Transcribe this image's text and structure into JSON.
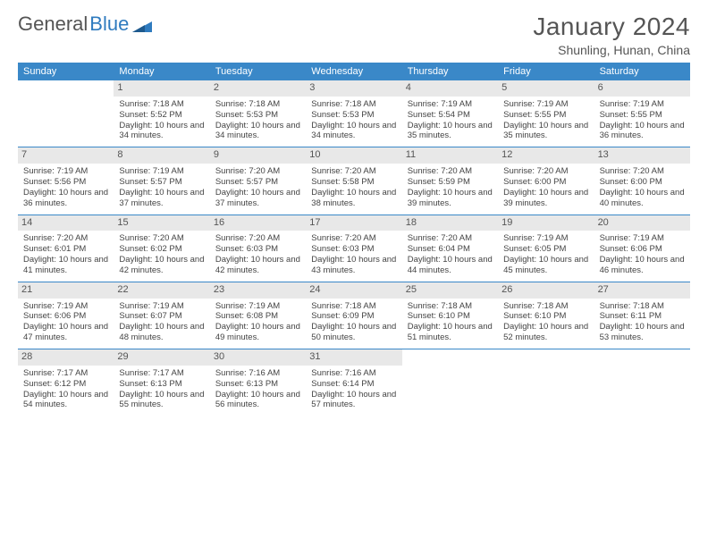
{
  "logo": {
    "text_gray": "General",
    "text_blue": "Blue"
  },
  "title": "January 2024",
  "location": "Shunling, Hunan, China",
  "colors": {
    "header_bg": "#3a88c8",
    "header_text": "#ffffff",
    "daynum_bg": "#e8e8e8",
    "rule": "#3a88c8",
    "text": "#444444",
    "title_text": "#555555",
    "logo_blue": "#2f7bbf"
  },
  "day_names": [
    "Sunday",
    "Monday",
    "Tuesday",
    "Wednesday",
    "Thursday",
    "Friday",
    "Saturday"
  ],
  "weeks": [
    [
      {
        "empty": true
      },
      {
        "day": "1",
        "sunrise": "Sunrise: 7:18 AM",
        "sunset": "Sunset: 5:52 PM",
        "daylight": "Daylight: 10 hours and 34 minutes."
      },
      {
        "day": "2",
        "sunrise": "Sunrise: 7:18 AM",
        "sunset": "Sunset: 5:53 PM",
        "daylight": "Daylight: 10 hours and 34 minutes."
      },
      {
        "day": "3",
        "sunrise": "Sunrise: 7:18 AM",
        "sunset": "Sunset: 5:53 PM",
        "daylight": "Daylight: 10 hours and 34 minutes."
      },
      {
        "day": "4",
        "sunrise": "Sunrise: 7:19 AM",
        "sunset": "Sunset: 5:54 PM",
        "daylight": "Daylight: 10 hours and 35 minutes."
      },
      {
        "day": "5",
        "sunrise": "Sunrise: 7:19 AM",
        "sunset": "Sunset: 5:55 PM",
        "daylight": "Daylight: 10 hours and 35 minutes."
      },
      {
        "day": "6",
        "sunrise": "Sunrise: 7:19 AM",
        "sunset": "Sunset: 5:55 PM",
        "daylight": "Daylight: 10 hours and 36 minutes."
      }
    ],
    [
      {
        "day": "7",
        "sunrise": "Sunrise: 7:19 AM",
        "sunset": "Sunset: 5:56 PM",
        "daylight": "Daylight: 10 hours and 36 minutes."
      },
      {
        "day": "8",
        "sunrise": "Sunrise: 7:19 AM",
        "sunset": "Sunset: 5:57 PM",
        "daylight": "Daylight: 10 hours and 37 minutes."
      },
      {
        "day": "9",
        "sunrise": "Sunrise: 7:20 AM",
        "sunset": "Sunset: 5:57 PM",
        "daylight": "Daylight: 10 hours and 37 minutes."
      },
      {
        "day": "10",
        "sunrise": "Sunrise: 7:20 AM",
        "sunset": "Sunset: 5:58 PM",
        "daylight": "Daylight: 10 hours and 38 minutes."
      },
      {
        "day": "11",
        "sunrise": "Sunrise: 7:20 AM",
        "sunset": "Sunset: 5:59 PM",
        "daylight": "Daylight: 10 hours and 39 minutes."
      },
      {
        "day": "12",
        "sunrise": "Sunrise: 7:20 AM",
        "sunset": "Sunset: 6:00 PM",
        "daylight": "Daylight: 10 hours and 39 minutes."
      },
      {
        "day": "13",
        "sunrise": "Sunrise: 7:20 AM",
        "sunset": "Sunset: 6:00 PM",
        "daylight": "Daylight: 10 hours and 40 minutes."
      }
    ],
    [
      {
        "day": "14",
        "sunrise": "Sunrise: 7:20 AM",
        "sunset": "Sunset: 6:01 PM",
        "daylight": "Daylight: 10 hours and 41 minutes."
      },
      {
        "day": "15",
        "sunrise": "Sunrise: 7:20 AM",
        "sunset": "Sunset: 6:02 PM",
        "daylight": "Daylight: 10 hours and 42 minutes."
      },
      {
        "day": "16",
        "sunrise": "Sunrise: 7:20 AM",
        "sunset": "Sunset: 6:03 PM",
        "daylight": "Daylight: 10 hours and 42 minutes."
      },
      {
        "day": "17",
        "sunrise": "Sunrise: 7:20 AM",
        "sunset": "Sunset: 6:03 PM",
        "daylight": "Daylight: 10 hours and 43 minutes."
      },
      {
        "day": "18",
        "sunrise": "Sunrise: 7:20 AM",
        "sunset": "Sunset: 6:04 PM",
        "daylight": "Daylight: 10 hours and 44 minutes."
      },
      {
        "day": "19",
        "sunrise": "Sunrise: 7:19 AM",
        "sunset": "Sunset: 6:05 PM",
        "daylight": "Daylight: 10 hours and 45 minutes."
      },
      {
        "day": "20",
        "sunrise": "Sunrise: 7:19 AM",
        "sunset": "Sunset: 6:06 PM",
        "daylight": "Daylight: 10 hours and 46 minutes."
      }
    ],
    [
      {
        "day": "21",
        "sunrise": "Sunrise: 7:19 AM",
        "sunset": "Sunset: 6:06 PM",
        "daylight": "Daylight: 10 hours and 47 minutes."
      },
      {
        "day": "22",
        "sunrise": "Sunrise: 7:19 AM",
        "sunset": "Sunset: 6:07 PM",
        "daylight": "Daylight: 10 hours and 48 minutes."
      },
      {
        "day": "23",
        "sunrise": "Sunrise: 7:19 AM",
        "sunset": "Sunset: 6:08 PM",
        "daylight": "Daylight: 10 hours and 49 minutes."
      },
      {
        "day": "24",
        "sunrise": "Sunrise: 7:18 AM",
        "sunset": "Sunset: 6:09 PM",
        "daylight": "Daylight: 10 hours and 50 minutes."
      },
      {
        "day": "25",
        "sunrise": "Sunrise: 7:18 AM",
        "sunset": "Sunset: 6:10 PM",
        "daylight": "Daylight: 10 hours and 51 minutes."
      },
      {
        "day": "26",
        "sunrise": "Sunrise: 7:18 AM",
        "sunset": "Sunset: 6:10 PM",
        "daylight": "Daylight: 10 hours and 52 minutes."
      },
      {
        "day": "27",
        "sunrise": "Sunrise: 7:18 AM",
        "sunset": "Sunset: 6:11 PM",
        "daylight": "Daylight: 10 hours and 53 minutes."
      }
    ],
    [
      {
        "day": "28",
        "sunrise": "Sunrise: 7:17 AM",
        "sunset": "Sunset: 6:12 PM",
        "daylight": "Daylight: 10 hours and 54 minutes."
      },
      {
        "day": "29",
        "sunrise": "Sunrise: 7:17 AM",
        "sunset": "Sunset: 6:13 PM",
        "daylight": "Daylight: 10 hours and 55 minutes."
      },
      {
        "day": "30",
        "sunrise": "Sunrise: 7:16 AM",
        "sunset": "Sunset: 6:13 PM",
        "daylight": "Daylight: 10 hours and 56 minutes."
      },
      {
        "day": "31",
        "sunrise": "Sunrise: 7:16 AM",
        "sunset": "Sunset: 6:14 PM",
        "daylight": "Daylight: 10 hours and 57 minutes."
      },
      {
        "empty": true
      },
      {
        "empty": true
      },
      {
        "empty": true
      }
    ]
  ]
}
